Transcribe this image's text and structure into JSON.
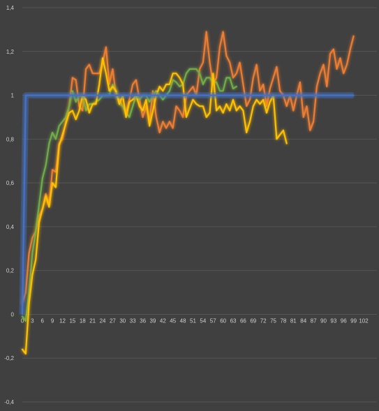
{
  "chart_data": {
    "type": "line",
    "title": "",
    "xlabel": "",
    "ylabel": "",
    "xlim": [
      0,
      102
    ],
    "ylim": [
      -0.4,
      1.4
    ],
    "grid": true,
    "legend": "none",
    "background": "#404040",
    "gridColor": "#555555",
    "xTickLabels": [
      "0",
      "3",
      "6",
      "9",
      "12",
      "15",
      "18",
      "21",
      "24",
      "27",
      "30",
      "33",
      "36",
      "39",
      "42",
      "45",
      "48",
      "51",
      "54",
      "57",
      "60",
      "63",
      "66",
      "69",
      "72",
      "75",
      "78",
      "81",
      "84",
      "87",
      "90",
      "93",
      "96",
      "99",
      "102"
    ],
    "yTickLabels": [
      "-0,4",
      "-0,2",
      "0",
      "0,2",
      "0,4",
      "0,6",
      "0,8",
      "1",
      "1,2",
      "1,4"
    ],
    "series": [
      {
        "color": "#ed7d31",
        "points": [
          [
            0,
            0.05
          ],
          [
            1,
            0.1
          ],
          [
            2,
            0.28
          ],
          [
            3,
            0.35
          ],
          [
            4,
            0.38
          ],
          [
            5,
            0.45
          ],
          [
            6,
            0.48
          ],
          [
            7,
            0.55
          ],
          [
            8,
            0.5
          ],
          [
            9,
            0.66
          ],
          [
            10,
            0.65
          ],
          [
            11,
            0.78
          ],
          [
            12,
            0.8
          ],
          [
            13,
            0.88
          ],
          [
            14,
            0.95
          ],
          [
            15,
            1.08
          ],
          [
            16,
            1.07
          ],
          [
            17,
            0.95
          ],
          [
            18,
            0.93
          ],
          [
            19,
            1.12
          ],
          [
            20,
            1.14
          ],
          [
            21,
            1.1
          ],
          [
            22,
            1.1
          ],
          [
            23,
            1.1
          ],
          [
            24,
            1.15
          ],
          [
            25,
            1.22
          ],
          [
            26,
            1.05
          ],
          [
            27,
            1.12
          ],
          [
            28,
            1.0
          ],
          [
            29,
            0.98
          ],
          [
            30,
            0.95
          ],
          [
            31,
            0.92
          ],
          [
            32,
            0.98
          ],
          [
            33,
            1.05
          ],
          [
            34,
            1.07
          ],
          [
            35,
            0.98
          ],
          [
            36,
            0.9
          ],
          [
            37,
            0.95
          ],
          [
            38,
            0.88
          ],
          [
            39,
            1.02
          ],
          [
            40,
            0.9
          ],
          [
            41,
            0.83
          ],
          [
            42,
            0.88
          ],
          [
            43,
            0.85
          ],
          [
            44,
            0.88
          ],
          [
            45,
            0.85
          ],
          [
            46,
            0.95
          ],
          [
            47,
            0.93
          ],
          [
            48,
            0.9
          ],
          [
            49,
            1.0
          ],
          [
            50,
            1.02
          ],
          [
            51,
            1.04
          ],
          [
            52,
            1.0
          ],
          [
            53,
            1.12
          ],
          [
            54,
            1.15
          ],
          [
            55,
            1.29
          ],
          [
            56,
            1.15
          ],
          [
            57,
            1.05
          ],
          [
            58,
            1.08
          ],
          [
            59,
            1.22
          ],
          [
            60,
            1.29
          ],
          [
            61,
            1.18
          ],
          [
            62,
            1.15
          ],
          [
            63,
            1.08
          ],
          [
            64,
            1.1
          ],
          [
            65,
            1.15
          ],
          [
            66,
            1.05
          ],
          [
            67,
            0.95
          ],
          [
            68,
            0.98
          ],
          [
            69,
            1.08
          ],
          [
            70,
            1.14
          ],
          [
            71,
            1.02
          ],
          [
            72,
            1.05
          ],
          [
            73,
            0.95
          ],
          [
            74,
            1.03
          ],
          [
            75,
            1.08
          ],
          [
            76,
            1.13
          ],
          [
            77,
            1.02
          ],
          [
            78,
            1.0
          ],
          [
            79,
            0.95
          ],
          [
            80,
            1.0
          ],
          [
            81,
            0.93
          ],
          [
            82,
            1.0
          ],
          [
            83,
            1.06
          ],
          [
            84,
            0.9
          ],
          [
            85,
            0.95
          ],
          [
            86,
            0.84
          ],
          [
            87,
            0.88
          ],
          [
            88,
            1.04
          ],
          [
            89,
            1.1
          ],
          [
            90,
            1.14
          ],
          [
            91,
            1.04
          ],
          [
            92,
            1.19
          ],
          [
            93,
            1.21
          ],
          [
            94,
            1.12
          ],
          [
            95,
            1.17
          ],
          [
            96,
            1.1
          ],
          [
            97,
            1.14
          ],
          [
            98,
            1.21
          ],
          [
            99,
            1.27
          ]
        ]
      },
      {
        "color": "#70ad47",
        "points": [
          [
            0,
            -0.01
          ],
          [
            1,
            -0.03
          ],
          [
            2,
            0.1
          ],
          [
            3,
            0.28
          ],
          [
            4,
            0.38
          ],
          [
            5,
            0.5
          ],
          [
            6,
            0.62
          ],
          [
            7,
            0.68
          ],
          [
            8,
            0.78
          ],
          [
            9,
            0.83
          ],
          [
            10,
            0.8
          ],
          [
            11,
            0.86
          ],
          [
            12,
            0.88
          ],
          [
            13,
            0.9
          ],
          [
            14,
            0.95
          ],
          [
            15,
            1.02
          ],
          [
            16,
            0.97
          ],
          [
            17,
            1.0
          ],
          [
            18,
            1.0
          ],
          [
            19,
            0.93
          ],
          [
            20,
            0.96
          ],
          [
            21,
            0.96
          ],
          [
            22,
            0.97
          ],
          [
            23,
            0.98
          ],
          [
            24,
            1.0
          ],
          [
            25,
            1.0
          ],
          [
            26,
            1.0
          ],
          [
            27,
            1.05
          ],
          [
            28,
            1.02
          ],
          [
            29,
            0.96
          ],
          [
            30,
            0.95
          ],
          [
            31,
            0.92
          ],
          [
            32,
            0.9
          ],
          [
            33,
            0.95
          ],
          [
            34,
            1.0
          ],
          [
            35,
            0.98
          ],
          [
            36,
            1.0
          ],
          [
            37,
            1.0
          ],
          [
            38,
            0.97
          ],
          [
            39,
            1.0
          ],
          [
            40,
            1.02
          ],
          [
            41,
            1.0
          ],
          [
            42,
            0.98
          ],
          [
            43,
            1.0
          ],
          [
            44,
            1.02
          ],
          [
            45,
            1.07
          ],
          [
            46,
            1.06
          ],
          [
            47,
            1.04
          ],
          [
            48,
            1.05
          ],
          [
            49,
            1.1
          ],
          [
            50,
            1.12
          ],
          [
            51,
            1.12
          ],
          [
            52,
            1.12
          ],
          [
            53,
            1.1
          ],
          [
            54,
            1.05
          ],
          [
            55,
            1.08
          ],
          [
            56,
            1.08
          ],
          [
            57,
            1.06
          ],
          [
            58,
            1.06
          ],
          [
            59,
            1.02
          ],
          [
            60,
            1.02
          ],
          [
            61,
            1.08
          ],
          [
            62,
            1.08
          ],
          [
            63,
            1.03
          ],
          [
            64,
            1.04
          ]
        ]
      },
      {
        "color": "#ffc000",
        "points": [
          [
            0,
            -0.16
          ],
          [
            1,
            -0.18
          ],
          [
            2,
            0.05
          ],
          [
            3,
            0.18
          ],
          [
            4,
            0.25
          ],
          [
            5,
            0.42
          ],
          [
            6,
            0.48
          ],
          [
            7,
            0.54
          ],
          [
            8,
            0.49
          ],
          [
            9,
            0.6
          ],
          [
            10,
            0.58
          ],
          [
            11,
            0.77
          ],
          [
            12,
            0.82
          ],
          [
            13,
            0.87
          ],
          [
            14,
            0.92
          ],
          [
            15,
            0.93
          ],
          [
            16,
            0.89
          ],
          [
            17,
            0.93
          ],
          [
            18,
            1.0
          ],
          [
            19,
            0.98
          ],
          [
            20,
            0.92
          ],
          [
            21,
            0.96
          ],
          [
            22,
            0.96
          ],
          [
            23,
            1.05
          ],
          [
            24,
            1.17
          ],
          [
            25,
            1.1
          ],
          [
            26,
            1.02
          ],
          [
            27,
            1.04
          ],
          [
            28,
            1.02
          ],
          [
            29,
            0.96
          ],
          [
            30,
            1.0
          ],
          [
            31,
            0.9
          ],
          [
            32,
            0.97
          ],
          [
            33,
            0.98
          ],
          [
            34,
            1.0
          ],
          [
            35,
            0.95
          ],
          [
            36,
            0.93
          ],
          [
            37,
            0.98
          ],
          [
            38,
            0.86
          ],
          [
            39,
            0.93
          ],
          [
            40,
            1.0
          ],
          [
            41,
            1.04
          ],
          [
            42,
            1.02
          ],
          [
            43,
            1.05
          ],
          [
            44,
            1.05
          ],
          [
            45,
            1.1
          ],
          [
            46,
            1.1
          ],
          [
            47,
            1.08
          ],
          [
            48,
            1.05
          ],
          [
            49,
            0.9
          ],
          [
            50,
            0.94
          ],
          [
            51,
            0.98
          ],
          [
            52,
            0.96
          ],
          [
            53,
            0.95
          ],
          [
            54,
            0.95
          ],
          [
            55,
            0.9
          ],
          [
            56,
            0.92
          ],
          [
            57,
            1.1
          ],
          [
            58,
            0.93
          ],
          [
            59,
            0.95
          ],
          [
            60,
            0.92
          ],
          [
            61,
            0.96
          ],
          [
            62,
            0.93
          ],
          [
            63,
            0.98
          ],
          [
            64,
            0.93
          ],
          [
            65,
            0.95
          ],
          [
            66,
            0.93
          ],
          [
            67,
            0.83
          ],
          [
            68,
            0.88
          ],
          [
            69,
            0.95
          ],
          [
            70,
            0.98
          ],
          [
            71,
            0.96
          ],
          [
            72,
            0.98
          ],
          [
            73,
            0.92
          ],
          [
            74,
            0.97
          ],
          [
            75,
            1.0
          ],
          [
            76,
            0.8
          ],
          [
            77,
            0.82
          ],
          [
            78,
            0.84
          ],
          [
            79,
            0.78
          ]
        ]
      },
      {
        "color": "#4472c4",
        "points": [
          [
            0,
            0
          ],
          [
            0.5,
            0.5
          ],
          [
            1,
            1.0
          ],
          [
            5,
            1.0
          ],
          [
            10,
            1.0
          ],
          [
            20,
            1.0
          ],
          [
            40,
            1.0
          ],
          [
            60,
            1.0
          ],
          [
            80,
            1.0
          ],
          [
            99,
            1.0
          ]
        ]
      }
    ]
  }
}
